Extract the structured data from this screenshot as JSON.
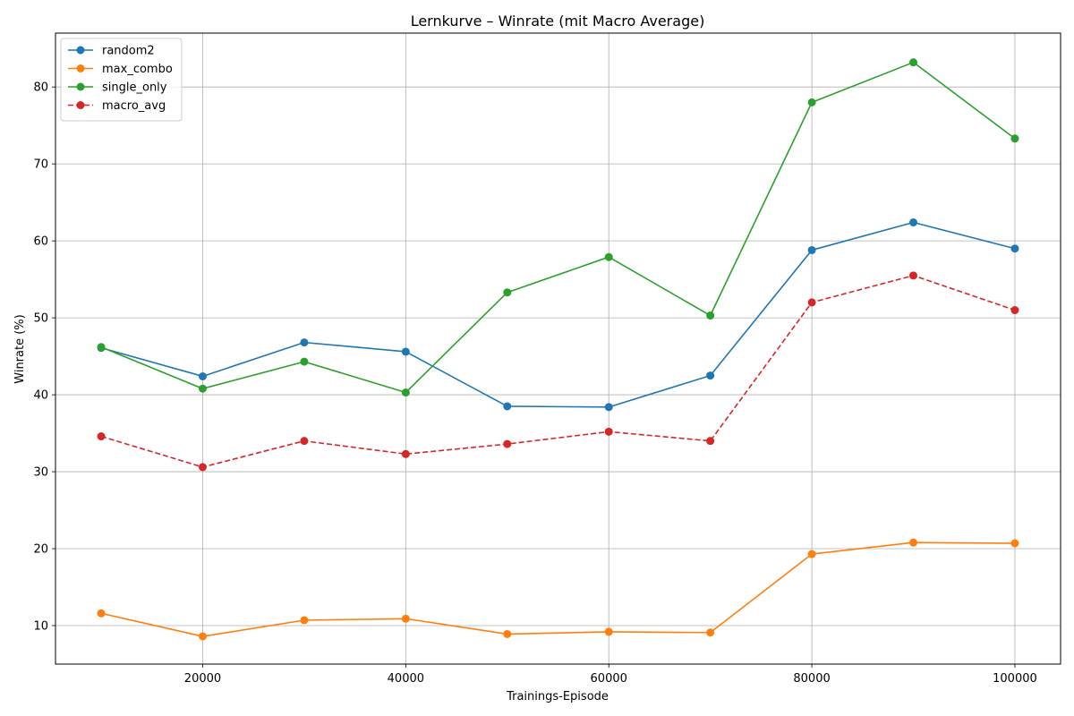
{
  "chart_data": {
    "type": "line",
    "title": "Lernkurve – Winrate (mit Macro Average)",
    "xlabel": "Trainings-Episode",
    "ylabel": "Winrate (%)",
    "x": [
      10000,
      20000,
      30000,
      40000,
      50000,
      60000,
      70000,
      80000,
      90000,
      100000
    ],
    "xlim": [
      5500,
      104500
    ],
    "ylim": [
      5,
      87
    ],
    "xticks": [
      20000,
      40000,
      60000,
      80000,
      100000
    ],
    "yticks": [
      10,
      20,
      30,
      40,
      50,
      60,
      70,
      80
    ],
    "grid": true,
    "legend_position": "top-left",
    "series": [
      {
        "name": "random2",
        "color": "#1f77b4",
        "dashed": false,
        "values": [
          46.1,
          42.4,
          46.8,
          45.6,
          38.5,
          38.4,
          42.5,
          58.8,
          62.4,
          59.0
        ]
      },
      {
        "name": "max_combo",
        "color": "#ff7f0e",
        "dashed": false,
        "values": [
          11.6,
          8.6,
          10.7,
          10.9,
          8.9,
          9.2,
          9.1,
          19.3,
          20.8,
          20.7
        ]
      },
      {
        "name": "single_only",
        "color": "#2ca02c",
        "dashed": false,
        "values": [
          46.2,
          40.8,
          44.3,
          40.3,
          53.3,
          57.9,
          50.3,
          78.0,
          83.2,
          73.3
        ]
      },
      {
        "name": "macro_avg",
        "color": "#d62728",
        "dashed": true,
        "values": [
          34.6,
          30.6,
          34.0,
          32.3,
          33.6,
          35.2,
          34.0,
          52.0,
          55.5,
          51.0
        ]
      }
    ]
  }
}
